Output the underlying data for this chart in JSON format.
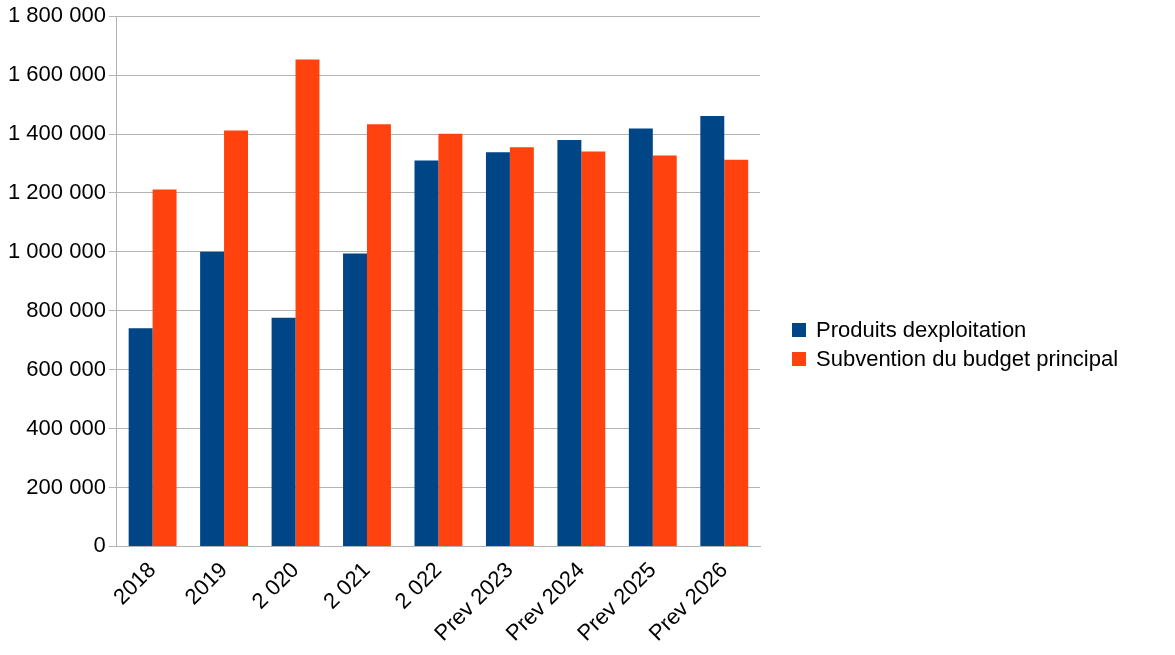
{
  "chart_data": {
    "type": "bar",
    "categories": [
      "2018",
      "2019",
      "2 020",
      "2 021",
      "2 022",
      "Prev 2023",
      "Prev 2024",
      "Prev 2025",
      "Prev 2026"
    ],
    "series": [
      {
        "name": "Produits dexploitation",
        "color": "#004586",
        "values": [
          741000,
          1000000,
          776000,
          994000,
          1310000,
          1338000,
          1380000,
          1419000,
          1461000
        ]
      },
      {
        "name": "Subvention du budget principal",
        "color": "#ff420e",
        "values": [
          1212000,
          1412000,
          1653000,
          1433000,
          1401000,
          1355000,
          1341000,
          1327000,
          1313000
        ]
      }
    ],
    "ylim": [
      0,
      1800000
    ],
    "yticks": [
      0,
      {
        "value": 200000,
        "label": "200 000"
      },
      {
        "value": 400000,
        "label": "400 000"
      },
      {
        "value": 600000,
        "label": "600 000"
      },
      {
        "value": 800000,
        "label": "800 000"
      },
      {
        "value": 1000000,
        "label": "1 000 000"
      },
      {
        "value": 1200000,
        "label": "1 200 000"
      },
      {
        "value": 1400000,
        "label": "1 400 000"
      },
      {
        "value": 1600000,
        "label": "1 600 000"
      },
      {
        "value": 1800000,
        "label": "1 800 000"
      }
    ],
    "grid": "y",
    "legend": "right"
  }
}
